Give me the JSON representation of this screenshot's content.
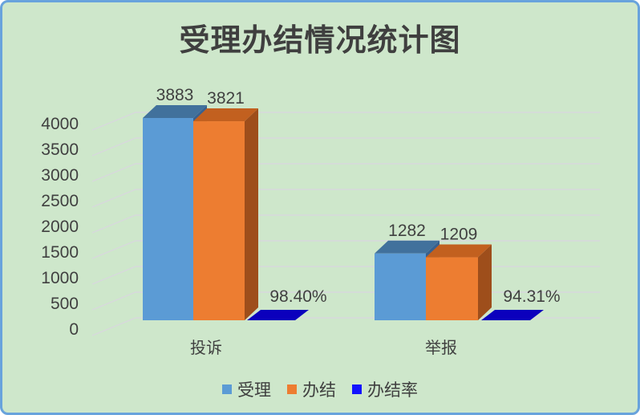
{
  "title": "受理办结情况统计图",
  "chart_data": {
    "type": "bar",
    "style": "3d-clustered-column",
    "title": "受理办结情况统计图",
    "categories": [
      "投诉",
      "举报"
    ],
    "series": [
      {
        "name": "受理",
        "values": [
          3883,
          1282
        ],
        "data_labels": [
          "3883",
          "1282"
        ],
        "color": "#5b9bd5",
        "color_top": "#41719c",
        "color_side": "#38618f"
      },
      {
        "name": "办结",
        "values": [
          3821,
          1209
        ],
        "data_labels": [
          "3821",
          "1209"
        ],
        "color": "#ed7d31",
        "color_top": "#c2601f",
        "color_side": "#9e4e1b"
      },
      {
        "name": "办结率",
        "values": [
          98.4,
          94.31
        ],
        "data_labels": [
          "98.40%",
          "94.31%"
        ],
        "color": "#1313ff",
        "color_top": "#0b00bd",
        "render": "flat-floor-tile"
      }
    ],
    "xlabel": "",
    "ylabel": "",
    "ylim": [
      0,
      4000
    ],
    "ytick_step": 500,
    "yticks": [
      "0",
      "500",
      "1000",
      "1500",
      "2000",
      "2500",
      "3000",
      "3500",
      "4000"
    ],
    "grid": true,
    "legend_position": "bottom"
  },
  "styles": {
    "background": "#cee7cb",
    "frame_border": "#68a3dc",
    "gridline": "#d9d6df",
    "text": "#404040",
    "title_text": "#3f3f3f"
  }
}
